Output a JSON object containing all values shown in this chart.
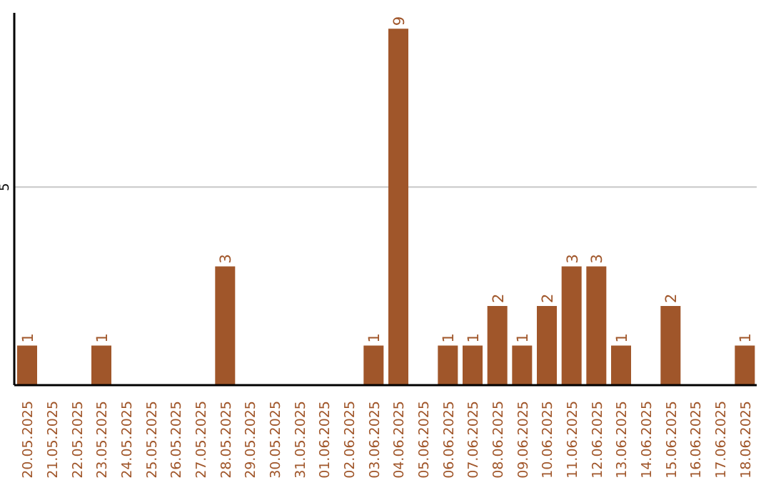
{
  "chart_data": {
    "type": "bar",
    "categories": [
      "20.05.2025",
      "21.05.2025",
      "22.05.2025",
      "23.05.2025",
      "24.05.2025",
      "25.05.2025",
      "26.05.2025",
      "27.05.2025",
      "28.05.2025",
      "29.05.2025",
      "30.05.2025",
      "31.05.2025",
      "01.06.2025",
      "02.06.2025",
      "03.06.2025",
      "04.06.2025",
      "05.06.2025",
      "06.06.2025",
      "07.06.2025",
      "08.06.2025",
      "09.06.2025",
      "10.06.2025",
      "11.06.2025",
      "12.06.2025",
      "13.06.2025",
      "14.06.2025",
      "15.06.2025",
      "16.06.2025",
      "17.06.2025",
      "18.06.2025"
    ],
    "values": [
      1,
      0,
      0,
      1,
      0,
      0,
      0,
      0,
      3,
      0,
      0,
      0,
      0,
      0,
      1,
      9,
      0,
      1,
      1,
      2,
      1,
      2,
      3,
      3,
      1,
      0,
      2,
      0,
      0,
      1
    ],
    "value_labels": [
      "1",
      null,
      null,
      "1",
      null,
      null,
      null,
      null,
      "3",
      null,
      null,
      null,
      null,
      null,
      "1",
      "9",
      null,
      "1",
      "1",
      "2",
      "1",
      "2",
      "3",
      "3",
      "1",
      null,
      "2",
      null,
      null,
      "1"
    ],
    "color": "#a0562a",
    "ylim": [
      0,
      9.4
    ],
    "yticks": [
      5
    ],
    "grid": "y"
  }
}
